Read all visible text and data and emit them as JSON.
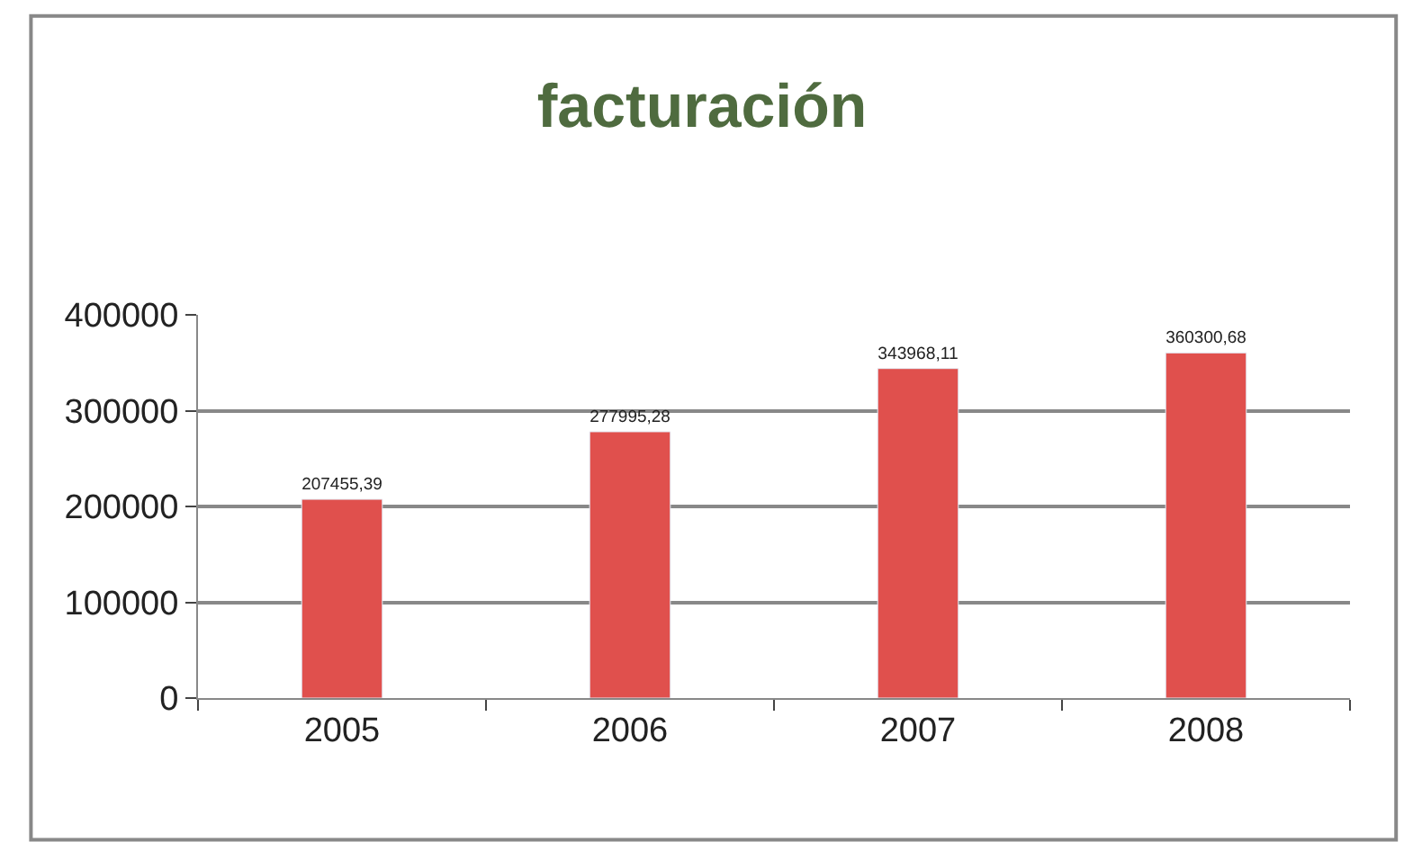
{
  "chart_data": {
    "type": "bar",
    "title": "facturación",
    "categories": [
      "2005",
      "2006",
      "2007",
      "2008"
    ],
    "values": [
      207455.39,
      277995.28,
      343968.11,
      360300.68
    ],
    "value_labels": [
      "207455,39",
      "277995,28",
      "343968,11",
      "360300,68"
    ],
    "color": "#e0504d",
    "ylim": [
      0,
      400000
    ],
    "yticks": [
      0,
      100000,
      200000,
      300000,
      400000
    ],
    "grid": "y",
    "legend": false
  }
}
